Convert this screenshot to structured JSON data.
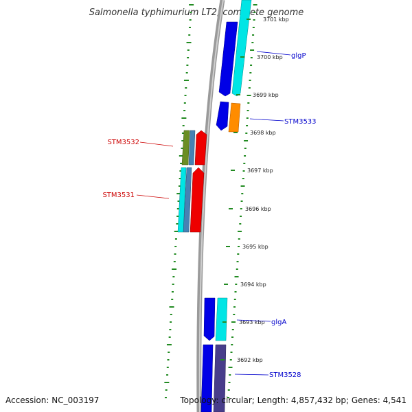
{
  "title": "Salmonella typhimurium LT2, complete genome",
  "accession": "Accession: NC_003197",
  "topology": "Topology: circular; Length: 4,857,432 bp; Genes: 4,541",
  "ticks": [
    {
      "label": "3701 kbp"
    },
    {
      "label": "3700 kbp"
    },
    {
      "label": "3699 kbp"
    },
    {
      "label": "3698 kbp"
    },
    {
      "label": "3697 kbp"
    },
    {
      "label": "3696 kbp"
    },
    {
      "label": "3695 kbp"
    },
    {
      "label": "3694 kbp"
    },
    {
      "label": "3693 kbp"
    },
    {
      "label": "3692 kbp"
    }
  ],
  "genes": [
    {
      "name": "glgP",
      "strand": "forward",
      "color": "#0000cc"
    },
    {
      "name": "STM3533",
      "strand": "forward",
      "color": "#0000cc"
    },
    {
      "name": "STM3532",
      "strand": "reverse",
      "color": "#cc0000"
    },
    {
      "name": "STM3531",
      "strand": "reverse",
      "color": "#cc0000"
    },
    {
      "name": "glgA",
      "strand": "forward",
      "color": "#0000cc"
    },
    {
      "name": "STM3528",
      "strand": "forward",
      "color": "#0000cc"
    }
  ],
  "colors": {
    "backbone": "#8a8a8a",
    "forward_cds": "#0000ee",
    "reverse_cds": "#ee0000",
    "cyan_feature": "#00e5e5",
    "orange_feature": "#ff8c00",
    "olive_feature": "#6b8e23",
    "steelblue_feature": "#4682b4",
    "slate_feature": "#483d8b",
    "gc_track": "#228b22"
  }
}
